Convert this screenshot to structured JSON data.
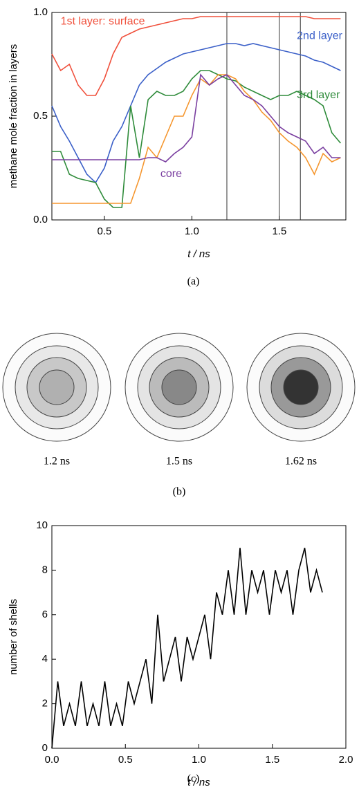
{
  "chart_data": [
    {
      "type": "line",
      "y_label": "methane mole fraction in layers",
      "x_label": "t / ns",
      "caption": "(a)",
      "x": [
        0.2,
        0.25,
        0.3,
        0.35,
        0.4,
        0.45,
        0.5,
        0.55,
        0.6,
        0.65,
        0.7,
        0.75,
        0.8,
        0.85,
        0.9,
        0.95,
        1.0,
        1.05,
        1.1,
        1.15,
        1.2,
        1.25,
        1.3,
        1.35,
        1.4,
        1.45,
        1.5,
        1.55,
        1.6,
        1.65,
        1.7,
        1.75,
        1.8,
        1.85
      ],
      "series": [
        {
          "name": "1st layer: surface",
          "color": "#f0503c",
          "values": [
            0.8,
            0.72,
            0.75,
            0.65,
            0.6,
            0.6,
            0.68,
            0.8,
            0.88,
            0.9,
            0.92,
            0.93,
            0.94,
            0.95,
            0.96,
            0.97,
            0.97,
            0.98,
            0.98,
            0.98,
            0.98,
            0.98,
            0.98,
            0.98,
            0.98,
            0.98,
            0.98,
            0.98,
            0.98,
            0.98,
            0.97,
            0.97,
            0.97,
            0.97
          ]
        },
        {
          "name": "2nd layer",
          "color": "#3a5fc8",
          "values": [
            0.55,
            0.45,
            0.38,
            0.3,
            0.22,
            0.18,
            0.25,
            0.38,
            0.45,
            0.55,
            0.65,
            0.7,
            0.73,
            0.76,
            0.78,
            0.8,
            0.81,
            0.82,
            0.83,
            0.84,
            0.85,
            0.85,
            0.84,
            0.85,
            0.84,
            0.83,
            0.82,
            0.81,
            0.8,
            0.79,
            0.77,
            0.76,
            0.74,
            0.72
          ]
        },
        {
          "name": "3rd layer",
          "color": "#2e8b3a",
          "values": [
            0.33,
            0.33,
            0.22,
            0.2,
            0.19,
            0.18,
            0.1,
            0.06,
            0.06,
            0.55,
            0.3,
            0.58,
            0.62,
            0.6,
            0.6,
            0.62,
            0.68,
            0.72,
            0.72,
            0.7,
            0.68,
            0.67,
            0.64,
            0.62,
            0.6,
            0.58,
            0.6,
            0.6,
            0.62,
            0.6,
            0.58,
            0.55,
            0.42,
            0.37
          ]
        },
        {
          "color": "#f5962e",
          "values": [
            0.08,
            0.08,
            0.08,
            0.08,
            0.08,
            0.08,
            0.08,
            0.08,
            0.08,
            0.08,
            0.2,
            0.35,
            0.3,
            0.4,
            0.5,
            0.5,
            0.6,
            0.68,
            0.65,
            0.7,
            0.7,
            0.68,
            0.62,
            0.58,
            0.52,
            0.48,
            0.42,
            0.38,
            0.35,
            0.3,
            0.22,
            0.32,
            0.28,
            0.3
          ]
        },
        {
          "name": "core",
          "color": "#7a3fa0",
          "values": [
            0.29,
            0.29,
            0.29,
            0.29,
            0.29,
            0.29,
            0.29,
            0.29,
            0.29,
            0.29,
            0.29,
            0.3,
            0.3,
            0.28,
            0.32,
            0.35,
            0.4,
            0.7,
            0.65,
            0.68,
            0.7,
            0.65,
            0.6,
            0.58,
            0.55,
            0.5,
            0.45,
            0.42,
            0.4,
            0.38,
            0.32,
            0.35,
            0.3,
            0.3
          ]
        }
      ],
      "vlines": [
        1.2,
        1.5,
        1.62
      ],
      "xlim": [
        0.2,
        1.88
      ],
      "xticks": [
        0.5,
        {
          "value": 1.0,
          "label": "1.0"
        },
        1.5
      ],
      "ylim": [
        0,
        1.0
      ],
      "yticks": [
        {
          "value": 0,
          "label": "0.0"
        },
        0.5,
        {
          "value": 1.0,
          "label": "1.0"
        }
      ]
    },
    {
      "type": "line",
      "y_label": "number of shells",
      "x_label": "t / ns",
      "caption": "(c)",
      "x": [
        0,
        0.04,
        0.08,
        0.12,
        0.16,
        0.2,
        0.24,
        0.28,
        0.32,
        0.36,
        0.4,
        0.44,
        0.48,
        0.52,
        0.56,
        0.6,
        0.64,
        0.68,
        0.72,
        0.76,
        0.8,
        0.84,
        0.88,
        0.92,
        0.96,
        1.0,
        1.04,
        1.08,
        1.12,
        1.16,
        1.2,
        1.24,
        1.28,
        1.32,
        1.36,
        1.4,
        1.44,
        1.48,
        1.52,
        1.56,
        1.6,
        1.64,
        1.68,
        1.72,
        1.76,
        1.8,
        1.84
      ],
      "series": [
        {
          "color": "#000000",
          "values": [
            0,
            3,
            1,
            2,
            1,
            3,
            1,
            2,
            1,
            3,
            1,
            2,
            1,
            3,
            2,
            3,
            4,
            2,
            6,
            3,
            4,
            5,
            3,
            5,
            4,
            5,
            6,
            4,
            7,
            6,
            8,
            6,
            9,
            6,
            8,
            7,
            8,
            6,
            8,
            7,
            8,
            6,
            8,
            9,
            7,
            8,
            7
          ]
        }
      ],
      "xlim": [
        0,
        2.0
      ],
      "xticks": [
        {
          "value": 0,
          "label": "0.0"
        },
        0.5,
        {
          "value": 1.0,
          "label": "1.0"
        },
        1.5,
        {
          "value": 2.0,
          "label": "2.0"
        }
      ],
      "ylim": [
        0,
        10
      ],
      "yticks": [
        0,
        2,
        4,
        6,
        8,
        10
      ]
    }
  ],
  "diagram": {
    "caption": "(b)",
    "snapshots": [
      {
        "label": "1.2 ns",
        "fills": [
          "#fbfbfb",
          "#e8e8e8",
          "#c8c8c8",
          "#b0b0b0"
        ]
      },
      {
        "label": "1.5 ns",
        "fills": [
          "#fbfbfb",
          "#e4e4e4",
          "#bbbbbb",
          "#888888"
        ]
      },
      {
        "label": "1.62 ns",
        "fills": [
          "#fbfbfb",
          "#dcdcdc",
          "#999999",
          "#333333"
        ]
      }
    ]
  }
}
